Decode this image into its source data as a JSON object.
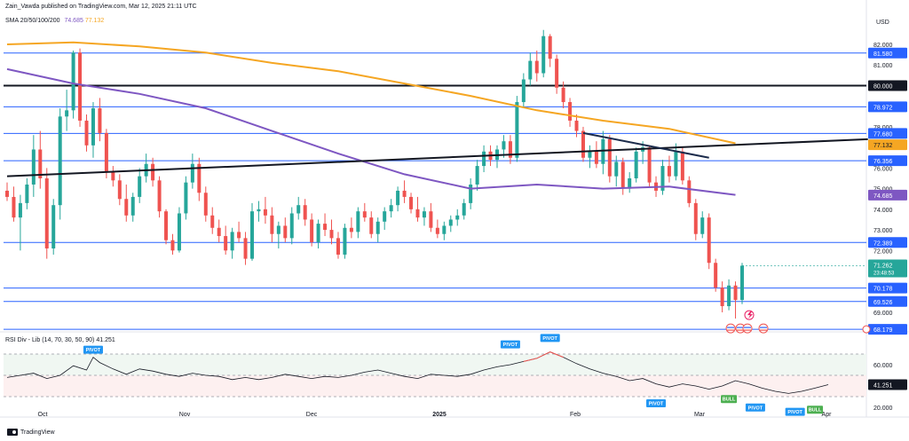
{
  "header": {
    "published": "Zain_Vawda published on TradingView.com, Mar 12, 2025 21:11 UTC"
  },
  "legend": {
    "sma_label": "SMA 20/50/100/200",
    "sma_value_1": "74.685",
    "sma_value_2": "77.132"
  },
  "rsi_legend": {
    "label": "RSI Div - Lib (14, 70, 30, 50, 90)",
    "value": "41.251"
  },
  "footer": {
    "brand": "TradingView"
  },
  "colors": {
    "bull": "#26a69a",
    "bear": "#ef5350",
    "sma100": "#7e57c2",
    "sma200": "#f5a623",
    "hline": "#2962ff",
    "trend": "#131722",
    "rsi_line": "#131722",
    "rsi_div_bear": "#ef5350",
    "pivot": "#2196f3",
    "bull_label": "#4caf50"
  },
  "icons": {
    "flag": "us-flag-icon",
    "lightning": "lightning-icon"
  },
  "chart_data": {
    "type": "candlestick",
    "currency": "USD",
    "price_axis": {
      "ticks": [
        "82.000",
        "81.000",
        "78.000",
        "76.000",
        "75.000",
        "74.000",
        "73.000",
        "72.000",
        "69.000"
      ],
      "tick_values": [
        82,
        81,
        78,
        76,
        75,
        74,
        73,
        72,
        69
      ]
    },
    "time_axis": [
      "Oct",
      "Nov",
      "Dec",
      "2025",
      "Feb",
      "Mar",
      "Apr"
    ],
    "horizontal_levels": [
      {
        "value": 81.58,
        "label": "81.580"
      },
      {
        "value": 78.972,
        "label": "78.972"
      },
      {
        "value": 77.68,
        "label": "77.680"
      },
      {
        "value": 76.356,
        "label": "76.356"
      },
      {
        "value": 72.389,
        "label": "72.389"
      },
      {
        "value": 70.178,
        "label": "70.178"
      },
      {
        "value": 69.526,
        "label": "69.526"
      },
      {
        "value": 68.179,
        "label": "68.179"
      }
    ],
    "key_level": {
      "value": 80.0,
      "label": "80.000"
    },
    "current_price": {
      "value": 71.262,
      "label": "71.262",
      "countdown": "23:48:53"
    },
    "sma_badges": [
      {
        "value": 77.132,
        "label": "77.132"
      },
      {
        "value": 74.685,
        "label": "74.685"
      }
    ],
    "trendlines": [
      {
        "name": "support-trendline",
        "from": {
          "i": 0,
          "v": 75.6
        },
        "to": {
          "i": 130,
          "v": 77.4
        }
      },
      {
        "name": "descending-trendline",
        "from": {
          "i": 87,
          "v": 77.7
        },
        "to": {
          "i": 106,
          "v": 76.5
        }
      }
    ],
    "sma200": [
      [
        0,
        82.0
      ],
      [
        10,
        82.1
      ],
      [
        20,
        81.9
      ],
      [
        30,
        81.6
      ],
      [
        40,
        81.1
      ],
      [
        50,
        80.7
      ],
      [
        60,
        80.1
      ],
      [
        70,
        79.5
      ],
      [
        80,
        78.8
      ],
      [
        90,
        78.3
      ],
      [
        100,
        77.9
      ],
      [
        110,
        77.2
      ]
    ],
    "sma100": [
      [
        0,
        80.8
      ],
      [
        10,
        80.1
      ],
      [
        20,
        79.6
      ],
      [
        30,
        78.9
      ],
      [
        40,
        77.8
      ],
      [
        50,
        76.7
      ],
      [
        60,
        75.7
      ],
      [
        70,
        75.0
      ],
      [
        80,
        75.2
      ],
      [
        90,
        75.0
      ],
      [
        100,
        75.1
      ],
      [
        110,
        74.7
      ]
    ],
    "candles": [
      [
        74.9,
        75.3,
        74.4,
        74.6
      ],
      [
        74.6,
        75.1,
        73.4,
        73.6
      ],
      [
        73.6,
        74.7,
        72.0,
        74.3
      ],
      [
        74.3,
        75.5,
        74.0,
        75.2
      ],
      [
        75.2,
        77.6,
        74.6,
        76.9
      ],
      [
        76.9,
        77.8,
        75.0,
        75.5
      ],
      [
        75.5,
        76.0,
        71.6,
        72.1
      ],
      [
        72.1,
        74.5,
        71.8,
        74.2
      ],
      [
        74.2,
        78.9,
        73.5,
        78.5
      ],
      [
        78.5,
        79.8,
        77.8,
        78.8
      ],
      [
        78.8,
        81.7,
        78.4,
        81.6
      ],
      [
        81.6,
        81.8,
        78.0,
        78.3
      ],
      [
        78.3,
        78.6,
        76.8,
        77.1
      ],
      [
        77.1,
        79.2,
        76.5,
        78.9
      ],
      [
        78.9,
        79.4,
        77.3,
        77.7
      ],
      [
        77.7,
        77.9,
        75.5,
        75.8
      ],
      [
        75.8,
        76.1,
        75.1,
        75.4
      ],
      [
        75.4,
        75.7,
        74.2,
        74.5
      ],
      [
        74.5,
        75.2,
        73.4,
        73.7
      ],
      [
        73.7,
        74.8,
        73.4,
        74.6
      ],
      [
        74.6,
        76.0,
        74.3,
        75.6
      ],
      [
        75.6,
        76.7,
        75.3,
        76.2
      ],
      [
        76.2,
        76.5,
        75.1,
        75.4
      ],
      [
        75.4,
        75.6,
        73.6,
        73.9
      ],
      [
        73.9,
        74.0,
        72.3,
        72.5
      ],
      [
        72.5,
        72.8,
        71.8,
        72.0
      ],
      [
        72.0,
        74.1,
        71.9,
        73.8
      ],
      [
        73.8,
        75.6,
        73.5,
        75.3
      ],
      [
        75.3,
        76.7,
        75.0,
        76.2
      ],
      [
        76.2,
        76.5,
        74.4,
        74.8
      ],
      [
        74.8,
        75.1,
        73.4,
        73.7
      ],
      [
        73.7,
        74.1,
        72.8,
        73.1
      ],
      [
        73.1,
        73.5,
        72.4,
        72.7
      ],
      [
        72.7,
        73.2,
        71.8,
        72.0
      ],
      [
        72.0,
        73.1,
        71.6,
        72.9
      ],
      [
        72.9,
        73.4,
        72.4,
        72.6
      ],
      [
        72.6,
        72.9,
        71.3,
        71.6
      ],
      [
        71.6,
        74.3,
        71.5,
        73.9
      ],
      [
        73.9,
        74.4,
        73.4,
        74.0
      ],
      [
        74.0,
        74.6,
        73.3,
        73.7
      ],
      [
        73.7,
        74.1,
        72.4,
        72.8
      ],
      [
        72.8,
        73.4,
        72.1,
        73.2
      ],
      [
        73.2,
        73.6,
        72.4,
        72.6
      ],
      [
        72.6,
        74.1,
        72.3,
        73.8
      ],
      [
        73.8,
        74.6,
        73.5,
        74.2
      ],
      [
        74.2,
        74.5,
        73.2,
        73.5
      ],
      [
        73.5,
        73.8,
        72.2,
        72.4
      ],
      [
        72.4,
        73.5,
        72.1,
        73.3
      ],
      [
        73.3,
        73.8,
        72.7,
        73.0
      ],
      [
        73.0,
        73.5,
        72.3,
        72.6
      ],
      [
        72.6,
        72.9,
        71.6,
        71.8
      ],
      [
        71.8,
        73.3,
        71.6,
        73.1
      ],
      [
        73.1,
        73.6,
        72.6,
        72.9
      ],
      [
        72.9,
        74.1,
        72.6,
        73.9
      ],
      [
        73.9,
        74.3,
        73.4,
        73.6
      ],
      [
        73.6,
        73.9,
        72.6,
        72.8
      ],
      [
        72.8,
        73.6,
        72.4,
        73.4
      ],
      [
        73.4,
        74.1,
        73.0,
        73.9
      ],
      [
        73.9,
        74.5,
        73.6,
        74.2
      ],
      [
        74.2,
        75.1,
        73.9,
        74.9
      ],
      [
        74.9,
        75.4,
        74.3,
        74.6
      ],
      [
        74.6,
        74.8,
        73.8,
        74.0
      ],
      [
        74.0,
        74.6,
        73.4,
        73.6
      ],
      [
        73.6,
        74.1,
        73.2,
        73.9
      ],
      [
        73.9,
        74.3,
        72.9,
        73.1
      ],
      [
        73.1,
        73.5,
        72.6,
        72.8
      ],
      [
        72.8,
        73.4,
        72.5,
        73.2
      ],
      [
        73.2,
        73.7,
        72.9,
        73.5
      ],
      [
        73.5,
        74.0,
        73.2,
        73.7
      ],
      [
        73.7,
        74.5,
        73.5,
        74.3
      ],
      [
        74.3,
        75.5,
        74.0,
        75.2
      ],
      [
        75.2,
        76.4,
        74.9,
        76.1
      ],
      [
        76.1,
        77.1,
        75.8,
        76.8
      ],
      [
        76.8,
        77.1,
        76.1,
        76.4
      ],
      [
        76.4,
        77.1,
        76.0,
        76.9
      ],
      [
        76.9,
        77.6,
        76.5,
        77.3
      ],
      [
        77.3,
        77.6,
        76.2,
        76.5
      ],
      [
        76.5,
        79.5,
        76.3,
        79.2
      ],
      [
        79.2,
        80.6,
        78.9,
        80.3
      ],
      [
        80.3,
        81.6,
        80.0,
        81.2
      ],
      [
        81.2,
        81.7,
        80.2,
        80.6
      ],
      [
        80.6,
        82.7,
        80.4,
        82.4
      ],
      [
        82.4,
        82.5,
        80.9,
        81.3
      ],
      [
        81.3,
        81.5,
        79.6,
        79.9
      ],
      [
        79.9,
        80.2,
        78.9,
        79.2
      ],
      [
        79.2,
        79.4,
        78.0,
        78.3
      ],
      [
        78.3,
        78.6,
        77.5,
        77.8
      ],
      [
        77.8,
        78.0,
        76.3,
        76.5
      ],
      [
        76.5,
        77.1,
        76.0,
        76.8
      ],
      [
        76.8,
        77.3,
        76.0,
        76.2
      ],
      [
        76.2,
        77.8,
        75.7,
        77.4
      ],
      [
        77.4,
        77.6,
        75.3,
        75.6
      ],
      [
        75.6,
        76.6,
        75.1,
        76.3
      ],
      [
        76.3,
        76.5,
        74.7,
        75.0
      ],
      [
        75.0,
        75.8,
        74.8,
        75.5
      ],
      [
        75.5,
        77.0,
        75.3,
        76.8
      ],
      [
        76.8,
        77.3,
        76.2,
        77.0
      ],
      [
        77.0,
        77.1,
        75.1,
        75.3
      ],
      [
        75.3,
        75.6,
        74.6,
        74.9
      ],
      [
        74.9,
        76.4,
        74.7,
        76.1
      ],
      [
        76.1,
        76.6,
        75.3,
        75.6
      ],
      [
        75.6,
        77.2,
        75.4,
        76.8
      ],
      [
        76.8,
        77.0,
        75.2,
        75.4
      ],
      [
        75.4,
        75.6,
        74.1,
        74.3
      ],
      [
        74.3,
        74.5,
        72.5,
        72.8
      ],
      [
        72.8,
        73.9,
        72.6,
        73.6
      ],
      [
        73.6,
        73.8,
        71.1,
        71.4
      ],
      [
        71.4,
        71.6,
        70.0,
        70.2
      ],
      [
        70.2,
        70.5,
        69.0,
        69.3
      ],
      [
        69.3,
        70.6,
        69.1,
        70.3
      ],
      [
        70.3,
        70.5,
        68.7,
        69.6
      ],
      [
        69.6,
        71.4,
        69.4,
        71.262
      ]
    ]
  },
  "rsi": {
    "levels": [
      {
        "value": 60,
        "label": "60.000"
      },
      {
        "value": 41.251,
        "label": "41.251"
      },
      {
        "value": 20,
        "label": "20.000"
      }
    ],
    "overbought": 70,
    "oversold": 30,
    "series": [
      [
        0,
        48
      ],
      [
        2,
        50
      ],
      [
        4,
        52
      ],
      [
        6,
        47
      ],
      [
        8,
        50
      ],
      [
        10,
        59
      ],
      [
        12,
        55
      ],
      [
        13,
        67
      ],
      [
        14,
        62
      ],
      [
        16,
        56
      ],
      [
        18,
        51
      ],
      [
        20,
        56
      ],
      [
        22,
        54
      ],
      [
        24,
        51
      ],
      [
        26,
        49
      ],
      [
        28,
        52
      ],
      [
        30,
        50
      ],
      [
        32,
        49
      ],
      [
        34,
        46
      ],
      [
        36,
        48
      ],
      [
        38,
        46
      ],
      [
        40,
        48
      ],
      [
        42,
        51
      ],
      [
        44,
        49
      ],
      [
        46,
        47
      ],
      [
        48,
        49
      ],
      [
        50,
        48
      ],
      [
        52,
        50
      ],
      [
        54,
        53
      ],
      [
        56,
        55
      ],
      [
        58,
        52
      ],
      [
        60,
        49
      ],
      [
        62,
        47
      ],
      [
        64,
        51
      ],
      [
        66,
        50
      ],
      [
        68,
        49
      ],
      [
        70,
        51
      ],
      [
        72,
        55
      ],
      [
        74,
        58
      ],
      [
        76,
        60
      ],
      [
        78,
        63
      ],
      [
        80,
        66
      ],
      [
        82,
        72
      ],
      [
        84,
        67
      ],
      [
        86,
        61
      ],
      [
        88,
        56
      ],
      [
        90,
        52
      ],
      [
        92,
        49
      ],
      [
        94,
        45
      ],
      [
        96,
        47
      ],
      [
        98,
        42
      ],
      [
        100,
        39
      ],
      [
        102,
        42
      ],
      [
        104,
        40
      ],
      [
        106,
        37
      ],
      [
        108,
        40
      ],
      [
        110,
        45
      ],
      [
        112,
        42
      ],
      [
        114,
        38
      ],
      [
        116,
        35
      ],
      [
        118,
        33
      ],
      [
        120,
        35
      ],
      [
        122,
        38
      ],
      [
        124,
        41.251
      ]
    ],
    "labels": [
      {
        "text": "PIVOT",
        "kind": "pivot",
        "i": 13,
        "v": 67
      },
      {
        "text": "PIVOT",
        "kind": "pivot",
        "i": 76,
        "v": 72
      },
      {
        "text": "PIVOT",
        "kind": "pivot",
        "i": 82,
        "v": 78
      },
      {
        "text": "PIVOT",
        "kind": "pivot",
        "i": 98,
        "v": 30
      },
      {
        "text": "BULL",
        "kind": "bull",
        "i": 109,
        "v": 34
      },
      {
        "text": "PIVOT",
        "kind": "pivot",
        "i": 113,
        "v": 26
      },
      {
        "text": "PIVOT",
        "kind": "pivot",
        "i": 119,
        "v": 22
      },
      {
        "text": "BULL",
        "kind": "bull",
        "i": 122,
        "v": 24
      }
    ]
  }
}
